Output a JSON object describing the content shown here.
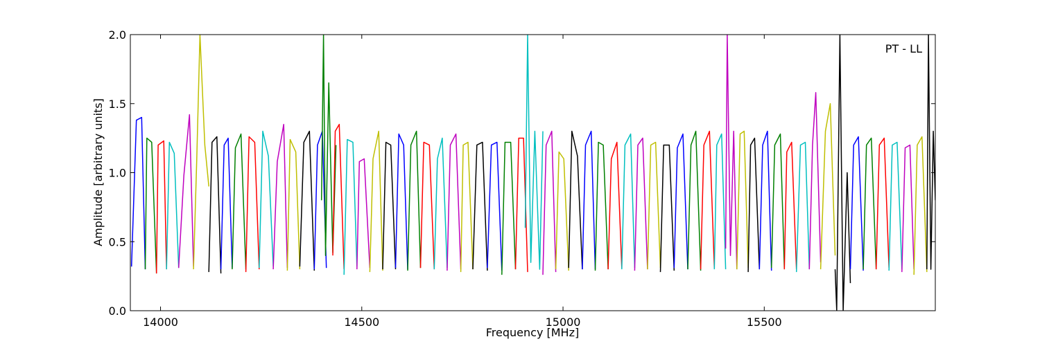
{
  "chart_data": {
    "type": "line",
    "title": "",
    "xlabel": "Frequency [MHz]",
    "ylabel": "Amplitude [arbitrary units]",
    "xlim": [
      13925,
      15925
    ],
    "ylim": [
      0.0,
      2.0
    ],
    "x_ticks": [
      14000,
      14500,
      15000,
      15500
    ],
    "x_tick_labels": [
      "14000",
      "14500",
      "15000",
      "15500"
    ],
    "y_ticks": [
      0.0,
      0.5,
      1.0,
      1.5,
      2.0
    ],
    "y_tick_labels": [
      "0.0",
      "0.5",
      "1.0",
      "1.5",
      "2.0"
    ],
    "annotation": "PT - LL",
    "grid": false,
    "color_cycle": [
      "#0000ff",
      "#008000",
      "#ff0000",
      "#00bfbf",
      "#bf00bf",
      "#bfbf00",
      "#000000"
    ],
    "series": [
      {
        "x": [
          13928,
          13940,
          13953,
          13962
        ],
        "y": [
          0.32,
          1.38,
          1.4,
          0.3
        ]
      },
      {
        "x": [
          13962,
          13966,
          13978,
          13990
        ],
        "y": [
          0.3,
          1.25,
          1.22,
          0.27
        ]
      },
      {
        "x": [
          13990,
          13994,
          14008,
          14015
        ],
        "y": [
          0.27,
          1.2,
          1.23,
          0.3
        ]
      },
      {
        "x": [
          14015,
          14022,
          14034,
          14045
        ],
        "y": [
          0.3,
          1.22,
          1.14,
          0.31
        ]
      },
      {
        "x": [
          14045,
          14058,
          14072,
          14082
        ],
        "y": [
          0.31,
          0.98,
          1.42,
          0.32
        ]
      },
      {
        "x": [
          14082,
          14090,
          14098,
          14110,
          14120
        ],
        "y": [
          0.3,
          1.1,
          2.0,
          1.2,
          0.9
        ]
      },
      {
        "x": [
          14120,
          14128,
          14140,
          14150
        ],
        "y": [
          0.28,
          1.22,
          1.26,
          0.27
        ]
      },
      {
        "x": [
          14150,
          14158,
          14168,
          14178
        ],
        "y": [
          0.3,
          1.2,
          1.25,
          0.31
        ]
      },
      {
        "x": [
          14178,
          14186,
          14200,
          14212
        ],
        "y": [
          0.3,
          1.18,
          1.28,
          0.3
        ]
      },
      {
        "x": [
          14212,
          14220,
          14234,
          14245
        ],
        "y": [
          0.28,
          1.26,
          1.22,
          0.3
        ]
      },
      {
        "x": [
          14245,
          14254,
          14268,
          14280
        ],
        "y": [
          0.31,
          1.3,
          1.12,
          0.32
        ]
      },
      {
        "x": [
          14280,
          14290,
          14306,
          14315
        ],
        "y": [
          0.3,
          1.08,
          1.35,
          0.31
        ]
      },
      {
        "x": [
          14315,
          14322,
          14336,
          14346
        ],
        "y": [
          0.29,
          1.24,
          1.15,
          0.3
        ]
      },
      {
        "x": [
          14346,
          14356,
          14370,
          14382
        ],
        "y": [
          0.32,
          1.22,
          1.3,
          0.29
        ]
      },
      {
        "x": [
          14382,
          14390,
          14402,
          14412
        ],
        "y": [
          0.3,
          1.2,
          1.3,
          0.31
        ]
      },
      {
        "x": [
          14400,
          14405,
          14410,
          14418,
          14428,
          14436
        ],
        "y": [
          0.8,
          2.0,
          0.4,
          1.65,
          0.42,
          1.2
        ]
      },
      {
        "x": [
          14428,
          14434,
          14444,
          14456
        ],
        "y": [
          0.4,
          1.3,
          1.35,
          0.3
        ]
      },
      {
        "x": [
          14456,
          14464,
          14478,
          14488
        ],
        "y": [
          0.26,
          1.24,
          1.22,
          0.32
        ]
      },
      {
        "x": [
          14488,
          14494,
          14506,
          14520
        ],
        "y": [
          0.3,
          1.08,
          1.1,
          0.31
        ]
      },
      {
        "x": [
          14520,
          14528,
          14542,
          14552
        ],
        "y": [
          0.28,
          1.1,
          1.3,
          0.29
        ]
      },
      {
        "x": [
          14552,
          14560,
          14572,
          14584
        ],
        "y": [
          0.3,
          1.22,
          1.2,
          0.3
        ]
      },
      {
        "x": [
          14584,
          14592,
          14604,
          14614
        ],
        "y": [
          0.31,
          1.28,
          1.2,
          0.3
        ]
      },
      {
        "x": [
          14614,
          14622,
          14636,
          14646
        ],
        "y": [
          0.29,
          1.2,
          1.3,
          0.31
        ]
      },
      {
        "x": [
          14646,
          14654,
          14668,
          14680
        ],
        "y": [
          0.31,
          1.22,
          1.2,
          0.3
        ]
      },
      {
        "x": [
          14680,
          14688,
          14700,
          14712
        ],
        "y": [
          0.3,
          1.1,
          1.25,
          0.31
        ]
      },
      {
        "x": [
          14712,
          14720,
          14734,
          14746
        ],
        "y": [
          0.29,
          1.2,
          1.28,
          0.3
        ]
      },
      {
        "x": [
          14746,
          14752,
          14764,
          14776
        ],
        "y": [
          0.28,
          1.2,
          1.22,
          0.3
        ]
      },
      {
        "x": [
          14776,
          14786,
          14800,
          14812
        ],
        "y": [
          0.3,
          1.2,
          1.22,
          0.29
        ]
      },
      {
        "x": [
          14812,
          14822,
          14836,
          14848
        ],
        "y": [
          0.31,
          1.2,
          1.22,
          0.29
        ]
      },
      {
        "x": [
          14848,
          14856,
          14870,
          14882
        ],
        "y": [
          0.26,
          1.22,
          1.22,
          0.3
        ]
      },
      {
        "x": [
          14882,
          14890,
          14902,
          14912
        ],
        "y": [
          0.3,
          1.25,
          1.25,
          0.28
        ]
      },
      {
        "x": [
          14906,
          14912,
          14920,
          14930,
          14942,
          14950
        ],
        "y": [
          0.6,
          2.0,
          0.35,
          1.3,
          0.3,
          1.3
        ]
      },
      {
        "x": [
          14950,
          14958,
          14972,
          14982
        ],
        "y": [
          0.26,
          1.2,
          1.3,
          0.28
        ]
      },
      {
        "x": [
          14982,
          14990,
          15002,
          15014
        ],
        "y": [
          0.3,
          1.15,
          1.1,
          0.29
        ]
      },
      {
        "x": [
          15014,
          15022,
          15036,
          15048
        ],
        "y": [
          0.31,
          1.3,
          1.12,
          0.3
        ]
      },
      {
        "x": [
          15048,
          15056,
          15070,
          15080
        ],
        "y": [
          0.3,
          1.2,
          1.3,
          0.3
        ]
      },
      {
        "x": [
          15080,
          15088,
          15100,
          15112
        ],
        "y": [
          0.29,
          1.22,
          1.2,
          0.3
        ]
      },
      {
        "x": [
          15112,
          15120,
          15134,
          15146
        ],
        "y": [
          0.3,
          1.1,
          1.22,
          0.31
        ]
      },
      {
        "x": [
          15146,
          15154,
          15168,
          15178
        ],
        "y": [
          0.3,
          1.2,
          1.28,
          0.31
        ]
      },
      {
        "x": [
          15178,
          15186,
          15198,
          15210
        ],
        "y": [
          0.29,
          1.2,
          1.25,
          0.3
        ]
      },
      {
        "x": [
          15210,
          15218,
          15230,
          15242
        ],
        "y": [
          0.3,
          1.2,
          1.22,
          0.31
        ]
      },
      {
        "x": [
          15242,
          15250,
          15264,
          15276
        ],
        "y": [
          0.28,
          1.2,
          1.2,
          0.29
        ]
      },
      {
        "x": [
          15276,
          15284,
          15298,
          15310
        ],
        "y": [
          0.31,
          1.18,
          1.28,
          0.3
        ]
      },
      {
        "x": [
          15310,
          15318,
          15330,
          15342
        ],
        "y": [
          0.3,
          1.2,
          1.3,
          0.29
        ]
      },
      {
        "x": [
          15342,
          15350,
          15364,
          15376
        ],
        "y": [
          0.3,
          1.2,
          1.3,
          0.31
        ]
      },
      {
        "x": [
          15376,
          15382,
          15394,
          15404
        ],
        "y": [
          0.3,
          1.2,
          1.28,
          0.3
        ]
      },
      {
        "x": [
          15404,
          15408,
          15416,
          15424,
          15432
        ],
        "y": [
          0.45,
          2.0,
          0.4,
          1.3,
          0.3
        ]
      },
      {
        "x": [
          15432,
          15440,
          15450,
          15460
        ],
        "y": [
          0.3,
          1.28,
          1.3,
          0.31
        ]
      },
      {
        "x": [
          15460,
          15466,
          15476,
          15488
        ],
        "y": [
          0.28,
          1.2,
          1.25,
          0.3
        ]
      },
      {
        "x": [
          15488,
          15496,
          15508,
          15518
        ],
        "y": [
          0.3,
          1.2,
          1.3,
          0.29
        ]
      },
      {
        "x": [
          15518,
          15526,
          15540,
          15550
        ],
        "y": [
          0.31,
          1.2,
          1.28,
          0.3
        ]
      },
      {
        "x": [
          15550,
          15556,
          15568,
          15580
        ],
        "y": [
          0.3,
          1.15,
          1.22,
          0.3
        ]
      },
      {
        "x": [
          15580,
          15590,
          15602,
          15612
        ],
        "y": [
          0.28,
          1.2,
          1.22,
          0.3
        ]
      },
      {
        "x": [
          15612,
          15620,
          15628,
          15640
        ],
        "y": [
          0.3,
          1.2,
          1.58,
          0.35
        ]
      },
      {
        "x": [
          15640,
          15652,
          15664,
          15676
        ],
        "y": [
          0.3,
          1.3,
          1.5,
          0.4
        ]
      },
      {
        "x": [
          15676,
          15680,
          15688,
          15696,
          15706,
          15714
        ],
        "y": [
          0.3,
          0.0,
          2.0,
          0.0,
          1.0,
          0.2
        ]
      },
      {
        "x": [
          15714,
          15722,
          15734,
          15746
        ],
        "y": [
          0.3,
          1.2,
          1.26,
          0.29
        ]
      },
      {
        "x": [
          15746,
          15754,
          15766,
          15778
        ],
        "y": [
          0.3,
          1.2,
          1.25,
          0.3
        ]
      },
      {
        "x": [
          15778,
          15786,
          15798,
          15810
        ],
        "y": [
          0.3,
          1.2,
          1.25,
          0.31
        ]
      },
      {
        "x": [
          15810,
          15818,
          15830,
          15842
        ],
        "y": [
          0.29,
          1.2,
          1.22,
          0.3
        ]
      },
      {
        "x": [
          15842,
          15850,
          15862,
          15872
        ],
        "y": [
          0.28,
          1.18,
          1.2,
          0.3
        ]
      },
      {
        "x": [
          15872,
          15880,
          15892,
          15904
        ],
        "y": [
          0.26,
          1.2,
          1.26,
          0.28
        ]
      },
      {
        "x": [
          15904,
          15908,
          15914,
          15920,
          15925
        ],
        "y": [
          0.3,
          2.0,
          0.3,
          1.3,
          0.8
        ]
      }
    ]
  }
}
